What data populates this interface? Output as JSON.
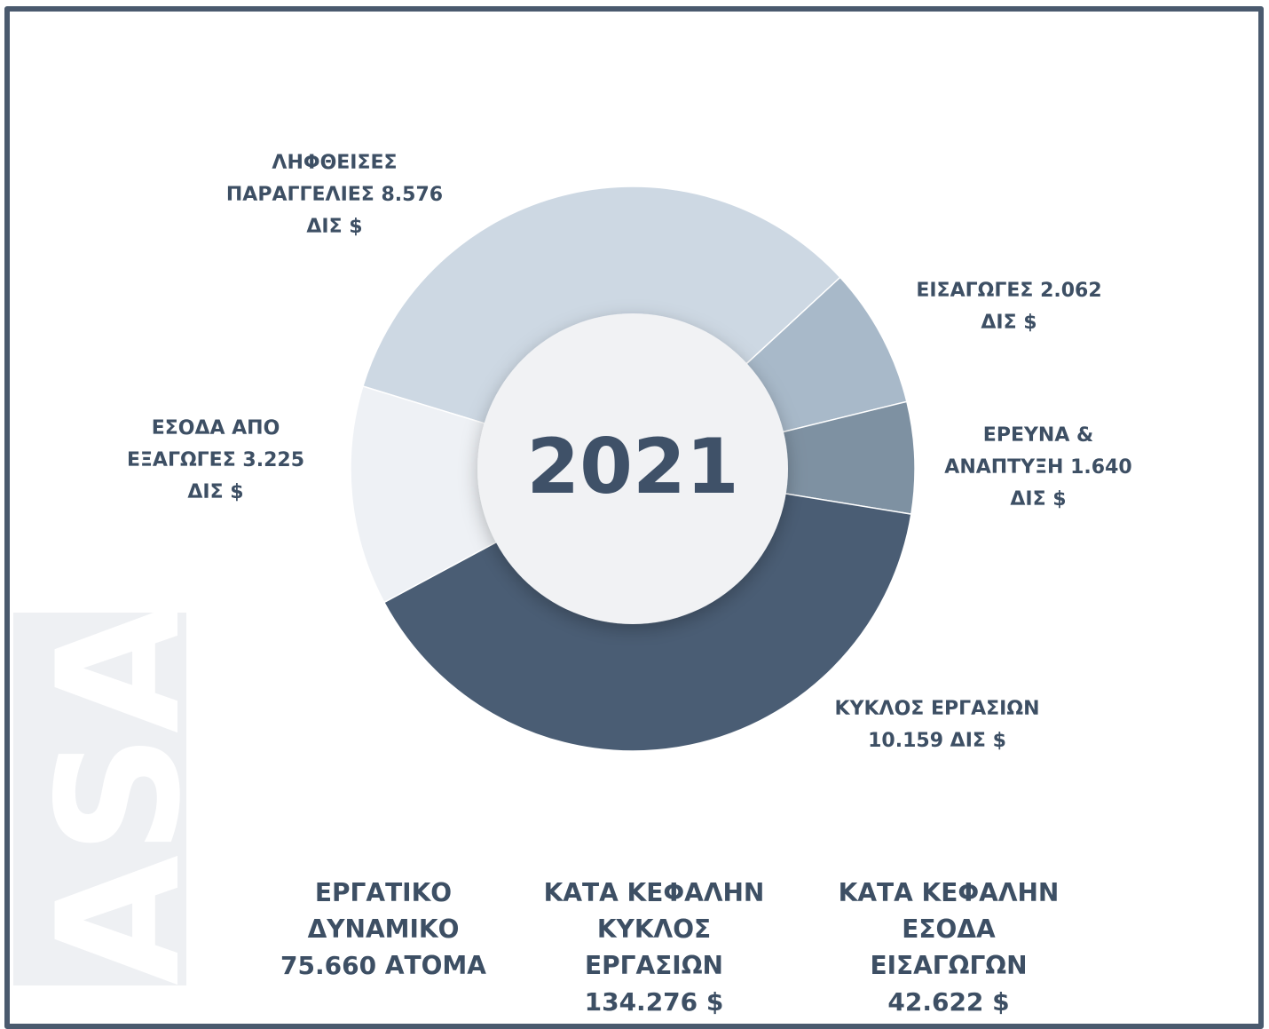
{
  "chart_data": {
    "type": "donut",
    "center_label": "2021",
    "categories": [
      "ΛΗΦΘΕΙΣΕΣ ΠΑΡΑΓΓΕΛΙΕΣ",
      "ΕΙΣΑΓΩΓΕΣ",
      "ΕΡΕΥΝΑ & ΑΝΑΠΤΥΞΗ",
      "ΚΥΚΛΟΣ ΕΡΓΑΣΙΩΝ",
      "ΕΣΟΔΑ ΑΠΟ ΕΞΑΓΩΓΕΣ"
    ],
    "values": [
      8.576,
      2.062,
      1.64,
      10.159,
      3.225
    ],
    "value_labels": [
      "8.576 ΔΙΣ $",
      "2.062 ΔΙΣ $",
      "1.640 ΔΙΣ $",
      "10.159 ΔΙΣ $",
      "3.225 ΔΙΣ $"
    ],
    "colors": [
      "#cdd8e3",
      "#a8b9c9",
      "#7e91a2",
      "#4a5d74",
      "#eef1f5"
    ]
  },
  "stats": [
    {
      "label": "ΕΡΓΑΤΙΚΟ ΔΥΝΑΜΙΚΟ",
      "value": "75.660 ΑΤΟΜΑ"
    },
    {
      "label": "ΚΑΤΑ ΚΕΦΑΛΗΝ ΚΥΚΛΟΣ ΕΡΓΑΣΙΩΝ",
      "value": "134.276 $"
    },
    {
      "label": "ΚΑΤΑ ΚΕΦΑΛΗΝ ΕΣΟΔΑ ΕΙΣΑΓΩΓΩΝ",
      "value": "42.622 $"
    }
  ],
  "watermark": "ASAD"
}
